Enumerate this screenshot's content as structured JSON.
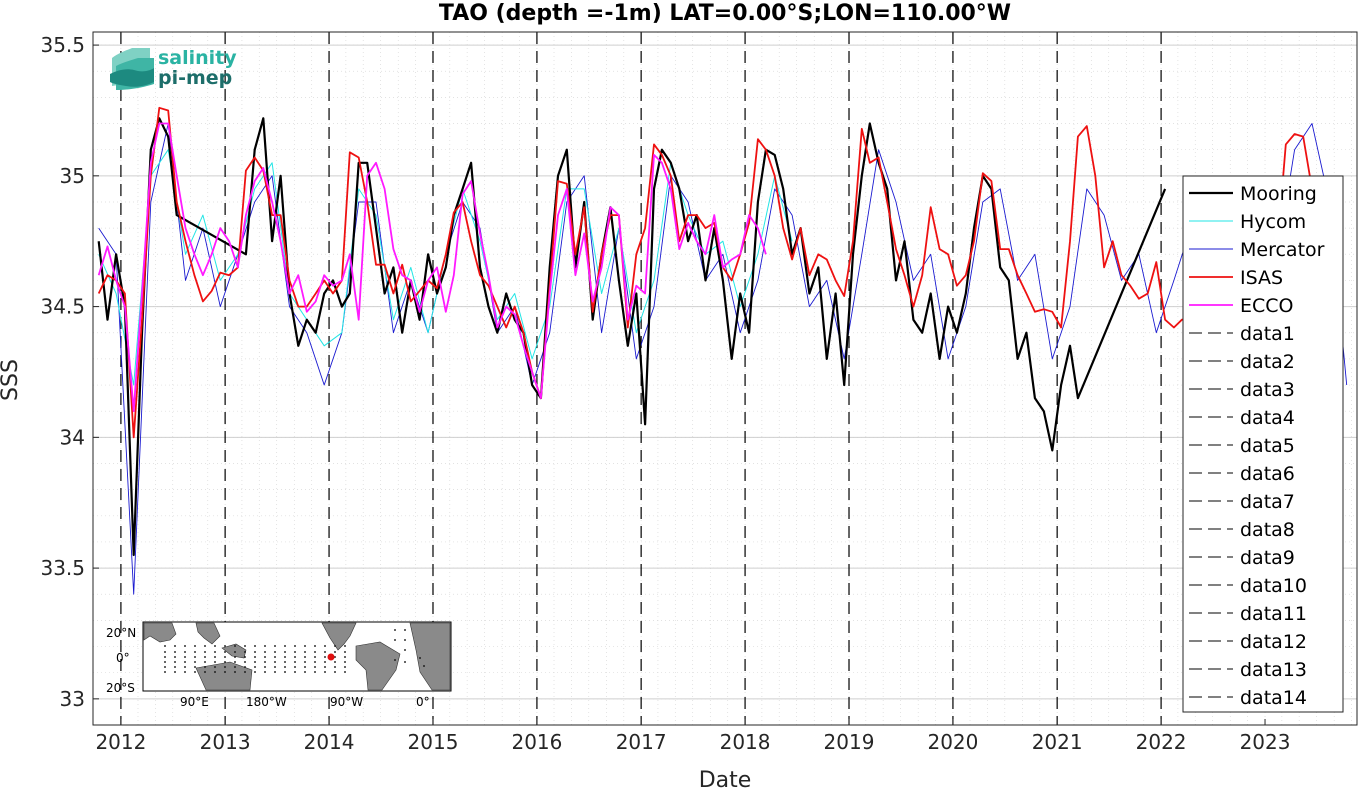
{
  "logo": {
    "line1": "salinity",
    "line2": "pi-mep"
  },
  "inset_map": {
    "lat_labels": [
      "20°N",
      "0°",
      "20°S"
    ],
    "lon_labels": [
      "90°E",
      "180°W",
      "90°W",
      "0°"
    ]
  },
  "colors": {
    "Mooring": "#000000",
    "Hycom": "#22e5e5",
    "Mercator": "#1a1ad0",
    "ISAS": "#ee1111",
    "ECCO": "#ff1aff",
    "yearline": "#000000",
    "grid": "#d9d9d9"
  },
  "chart_data": {
    "type": "line",
    "title": "TAO (depth =-1m) LAT=0.00°S;LON=110.00°W",
    "xlabel": "Date",
    "ylabel": "SSS",
    "xlim": [
      "2011-09-25",
      "2023-11-20"
    ],
    "ylim": [
      32.9,
      35.55
    ],
    "y_ticks": [
      "33",
      "33.5",
      "34",
      "34.5",
      "35",
      "35.5"
    ],
    "x_ticks": [
      "2012",
      "2013",
      "2014",
      "2015",
      "2016",
      "2017",
      "2018",
      "2019",
      "2020",
      "2021",
      "2022",
      "2023"
    ],
    "grid": true,
    "legend_position": "right",
    "legend": [
      "Mooring",
      "Hycom",
      "Mercator",
      "ISAS",
      "ECCO",
      "data1",
      "data2",
      "data3",
      "data4",
      "data5",
      "data6",
      "data7",
      "data8",
      "data9",
      "data10",
      "data11",
      "data12",
      "data13",
      "data14"
    ],
    "vertical_year_lines": [
      "2012-01-01",
      "2013-01-01",
      "2014-01-01",
      "2015-01-01",
      "2016-01-01",
      "2017-01-01",
      "2018-01-01",
      "2019-01-01",
      "2020-01-01",
      "2021-01-01",
      "2022-01-01"
    ],
    "series": [
      {
        "name": "ISAS",
        "x": [
          "2011-10",
          "2011-11",
          "2011-12",
          "2012-01",
          "2012-02",
          "2012-03",
          "2012-04",
          "2012-05",
          "2012-06",
          "2012-07",
          "2012-08",
          "2012-09",
          "2012-10",
          "2012-11",
          "2012-12",
          "2013-01",
          "2013-02",
          "2013-03",
          "2013-04",
          "2013-05",
          "2013-06",
          "2013-07",
          "2013-08",
          "2013-09",
          "2013-10",
          "2013-11",
          "2013-12",
          "2014-01",
          "2014-02",
          "2014-03",
          "2014-04",
          "2014-05",
          "2014-06",
          "2014-07",
          "2014-08",
          "2014-09",
          "2014-10",
          "2014-11",
          "2014-12",
          "2015-01",
          "2015-02",
          "2015-03",
          "2015-04",
          "2015-05",
          "2015-06",
          "2015-07",
          "2015-08",
          "2015-09",
          "2015-10",
          "2015-11",
          "2015-12",
          "2016-01",
          "2016-02",
          "2016-03",
          "2016-04",
          "2016-05",
          "2016-06",
          "2016-07",
          "2016-08",
          "2016-09",
          "2016-10",
          "2016-11",
          "2016-12",
          "2017-01",
          "2017-02",
          "2017-03",
          "2017-04",
          "2017-05",
          "2017-06",
          "2017-07",
          "2017-08",
          "2017-09",
          "2017-10",
          "2017-11",
          "2017-12",
          "2018-01",
          "2018-02",
          "2018-03",
          "2018-04",
          "2018-05",
          "2018-06",
          "2018-07",
          "2018-08",
          "2018-09",
          "2018-10",
          "2018-11",
          "2018-12",
          "2019-01",
          "2019-02",
          "2019-03",
          "2019-04",
          "2019-05",
          "2019-06",
          "2019-07",
          "2019-08",
          "2019-09",
          "2019-10",
          "2019-11",
          "2019-12",
          "2020-01",
          "2020-02",
          "2020-03",
          "2020-04",
          "2020-05",
          "2020-06",
          "2020-07",
          "2020-08",
          "2020-09",
          "2020-10",
          "2020-11",
          "2020-12",
          "2021-01",
          "2021-02",
          "2021-03",
          "2021-04",
          "2021-05",
          "2021-06",
          "2021-07",
          "2021-08",
          "2021-09",
          "2021-10",
          "2021-11",
          "2021-12",
          "2022-01",
          "2022-02",
          "2022-03",
          "2023-01",
          "2023-02",
          "2023-03",
          "2023-04",
          "2023-05",
          "2023-06",
          "2023-07",
          "2023-08",
          "2023-09"
        ],
        "y": [
          34.55,
          34.62,
          34.6,
          34.55,
          34.0,
          34.45,
          35.0,
          35.26,
          35.25,
          34.9,
          34.75,
          34.62,
          34.52,
          34.56,
          34.63,
          34.62,
          34.65,
          35.02,
          35.07,
          35.02,
          34.85,
          34.85,
          34.6,
          34.5,
          34.5,
          34.55,
          34.6,
          34.55,
          34.6,
          35.09,
          35.07,
          34.9,
          34.66,
          34.66,
          34.55,
          34.66,
          34.52,
          34.56,
          34.6,
          34.57,
          34.7,
          34.86,
          34.9,
          34.75,
          34.62,
          34.58,
          34.5,
          34.42,
          34.5,
          34.4,
          34.25,
          34.15,
          34.58,
          34.98,
          34.97,
          34.7,
          34.88,
          34.48,
          34.7,
          34.85,
          34.85,
          34.42,
          34.7,
          34.8,
          35.12,
          35.08,
          35.0,
          34.75,
          34.85,
          34.85,
          34.8,
          34.82,
          34.65,
          34.6,
          34.7,
          34.82,
          35.14,
          35.1,
          35.0,
          34.8,
          34.68,
          34.8,
          34.62,
          34.7,
          34.68,
          34.6,
          34.54,
          34.75,
          35.18,
          35.05,
          35.07,
          34.9,
          34.72,
          34.62,
          34.5,
          34.62,
          34.88,
          34.72,
          34.7,
          34.58,
          34.62,
          34.75,
          35.01,
          34.98,
          34.72,
          34.72,
          34.62,
          34.55,
          34.48,
          34.49,
          34.48,
          34.42,
          34.75,
          35.15,
          35.19,
          35.0,
          34.65,
          34.75,
          34.62,
          34.58,
          34.53,
          34.55,
          34.67,
          34.45,
          34.42,
          34.45,
          34.5,
          34.75,
          35.12,
          35.16,
          35.15,
          34.95,
          34.8,
          34.88,
          34.95
        ]
      },
      {
        "name": "ECCO",
        "x": [
          "2011-10",
          "2011-11",
          "2011-12",
          "2012-01",
          "2012-02",
          "2012-03",
          "2012-04",
          "2012-05",
          "2012-06",
          "2012-07",
          "2012-08",
          "2012-09",
          "2012-10",
          "2012-11",
          "2012-12",
          "2013-01",
          "2013-02",
          "2013-03",
          "2013-04",
          "2013-05",
          "2013-06",
          "2013-07",
          "2013-08",
          "2013-09",
          "2013-10",
          "2013-11",
          "2013-12",
          "2014-01",
          "2014-02",
          "2014-03",
          "2014-04",
          "2014-05",
          "2014-06",
          "2014-07",
          "2014-08",
          "2014-09",
          "2014-10",
          "2014-11",
          "2014-12",
          "2015-01",
          "2015-02",
          "2015-03",
          "2015-04",
          "2015-05",
          "2015-06",
          "2015-07",
          "2015-08",
          "2015-09",
          "2015-10",
          "2015-11",
          "2015-12",
          "2016-01",
          "2016-02",
          "2016-03",
          "2016-04",
          "2016-05",
          "2016-06",
          "2016-07",
          "2016-08",
          "2016-09",
          "2016-10",
          "2016-11",
          "2016-12",
          "2017-01",
          "2017-02",
          "2017-03",
          "2017-04",
          "2017-05",
          "2017-06",
          "2017-07",
          "2017-08",
          "2017-09",
          "2017-10",
          "2017-11",
          "2017-12",
          "2018-01",
          "2018-02",
          "2018-03"
        ],
        "y": [
          34.62,
          34.73,
          34.6,
          34.5,
          34.1,
          34.55,
          35.05,
          35.2,
          35.2,
          35.0,
          34.8,
          34.7,
          34.62,
          34.7,
          34.8,
          34.75,
          34.65,
          34.85,
          34.98,
          35.03,
          34.9,
          34.75,
          34.55,
          34.62,
          34.48,
          34.52,
          34.62,
          34.58,
          34.6,
          34.7,
          34.45,
          35.0,
          35.05,
          34.95,
          34.72,
          34.62,
          34.6,
          34.48,
          34.6,
          34.65,
          34.48,
          34.62,
          34.93,
          34.98,
          34.78,
          34.62,
          34.42,
          34.5,
          34.47,
          34.35,
          34.25,
          34.15,
          34.55,
          34.85,
          34.95,
          34.62,
          34.78,
          34.52,
          34.65,
          34.88,
          34.85,
          34.45,
          34.58,
          34.55,
          35.08,
          35.05,
          34.95,
          34.72,
          34.82,
          34.75,
          34.7,
          34.85,
          34.65,
          34.68,
          34.7,
          34.85,
          34.8,
          34.7
        ]
      },
      {
        "name": "Mooring",
        "x": [
          "2011-10",
          "2011-11",
          "2011-12",
          "2012-01",
          "2012-02",
          "2012-03",
          "2012-04",
          "2012-05",
          "2012-06",
          "2012-07",
          "2013-03",
          "2013-04",
          "2013-05",
          "2013-06",
          "2013-07",
          "2013-08",
          "2013-09",
          "2013-10",
          "2013-11",
          "2013-12",
          "2014-01",
          "2014-02",
          "2014-03",
          "2014-04",
          "2014-05",
          "2014-06",
          "2014-07",
          "2014-08",
          "2014-09",
          "2014-10",
          "2014-11",
          "2014-12",
          "2015-01",
          "2015-02",
          "2015-03",
          "2015-04",
          "2015-05",
          "2015-06",
          "2015-07",
          "2015-08",
          "2015-09",
          "2015-10",
          "2015-11",
          "2015-12",
          "2016-01",
          "2016-02",
          "2016-03",
          "2016-04",
          "2016-05",
          "2016-06",
          "2016-07",
          "2016-08",
          "2016-09",
          "2016-10",
          "2016-11",
          "2016-12",
          "2017-01",
          "2017-02",
          "2017-03",
          "2017-04",
          "2017-05",
          "2017-06",
          "2017-07",
          "2017-08",
          "2017-09",
          "2017-10",
          "2017-11",
          "2017-12",
          "2018-01",
          "2018-02",
          "2018-03",
          "2018-04",
          "2018-05",
          "2018-06",
          "2018-07",
          "2018-08",
          "2018-09",
          "2018-10",
          "2018-11",
          "2018-12",
          "2019-01",
          "2019-02",
          "2019-03",
          "2019-04",
          "2019-05",
          "2019-06",
          "2019-07",
          "2019-08",
          "2019-09",
          "2019-10",
          "2019-11",
          "2019-12",
          "2020-01",
          "2020-02",
          "2020-03",
          "2020-04",
          "2020-05",
          "2020-06",
          "2020-07",
          "2020-08",
          "2020-09",
          "2020-10",
          "2020-11",
          "2020-12",
          "2021-01",
          "2021-02",
          "2021-03",
          "2022-01"
        ],
        "y": [
          34.75,
          34.45,
          34.7,
          34.5,
          33.55,
          34.4,
          35.1,
          35.22,
          35.15,
          34.85,
          34.7,
          35.1,
          35.22,
          34.75,
          35.0,
          34.55,
          34.35,
          34.45,
          34.4,
          34.55,
          34.6,
          34.5,
          34.55,
          35.05,
          35.05,
          34.8,
          34.55,
          34.65,
          34.4,
          34.6,
          34.45,
          34.7,
          34.55,
          34.65,
          34.85,
          34.95,
          35.05,
          34.65,
          34.5,
          34.4,
          34.55,
          34.45,
          34.4,
          34.2,
          34.15,
          34.65,
          35.0,
          35.1,
          34.65,
          34.9,
          34.45,
          34.7,
          34.88,
          34.6,
          34.35,
          34.55,
          34.05,
          34.95,
          35.1,
          35.05,
          34.95,
          34.75,
          34.85,
          34.6,
          34.8,
          34.6,
          34.3,
          34.55,
          34.4,
          34.9,
          35.1,
          35.08,
          34.95,
          34.7,
          34.8,
          34.55,
          34.65,
          34.3,
          34.55,
          34.2,
          34.7,
          35.0,
          35.2,
          35.05,
          34.95,
          34.6,
          34.75,
          34.45,
          34.4,
          34.55,
          34.3,
          34.5,
          34.4,
          34.55,
          34.8,
          35.0,
          34.95,
          34.65,
          34.6,
          34.3,
          34.4,
          34.15,
          34.1,
          33.95,
          34.2,
          34.35,
          34.15,
          34.95
        ]
      },
      {
        "name": "Hycom",
        "x": [
          "2011-10",
          "2011-12",
          "2012-02",
          "2012-04",
          "2012-06",
          "2012-08",
          "2012-10",
          "2012-12",
          "2013-02",
          "2013-04",
          "2013-06",
          "2013-08",
          "2013-10",
          "2013-12",
          "2014-02",
          "2014-04",
          "2014-06",
          "2014-08",
          "2014-10",
          "2014-12",
          "2015-02",
          "2015-04",
          "2015-06",
          "2015-08",
          "2015-10",
          "2015-12",
          "2016-02",
          "2016-04",
          "2016-06",
          "2016-08",
          "2016-10",
          "2016-12",
          "2017-02",
          "2017-04",
          "2017-06",
          "2017-08",
          "2017-10",
          "2017-12",
          "2018-02",
          "2018-04",
          "2018-06"
        ],
        "y": [
          34.7,
          34.55,
          34.2,
          35.0,
          35.1,
          34.7,
          34.85,
          34.6,
          34.7,
          34.95,
          35.05,
          34.55,
          34.45,
          34.35,
          34.4,
          34.95,
          34.85,
          34.45,
          34.65,
          34.4,
          34.7,
          34.95,
          34.75,
          34.45,
          34.55,
          34.3,
          34.5,
          34.95,
          34.95,
          34.55,
          34.8,
          34.4,
          34.6,
          35.05,
          34.85,
          34.7,
          34.75,
          34.5,
          34.7,
          35.0,
          34.75
        ]
      },
      {
        "name": "Mercator",
        "x": [
          "2011-10",
          "2011-12",
          "2012-02",
          "2012-04",
          "2012-06",
          "2012-08",
          "2012-10",
          "2012-12",
          "2013-02",
          "2013-04",
          "2013-06",
          "2013-08",
          "2013-10",
          "2013-12",
          "2014-02",
          "2014-04",
          "2014-06",
          "2014-08",
          "2014-10",
          "2014-12",
          "2015-02",
          "2015-04",
          "2015-06",
          "2015-08",
          "2015-10",
          "2015-12",
          "2016-02",
          "2016-04",
          "2016-06",
          "2016-08",
          "2016-10",
          "2016-12",
          "2017-02",
          "2017-04",
          "2017-06",
          "2017-08",
          "2017-10",
          "2017-12",
          "2018-02",
          "2018-04",
          "2018-06",
          "2018-08",
          "2018-10",
          "2018-12",
          "2019-02",
          "2019-04",
          "2019-06",
          "2019-08",
          "2019-10",
          "2019-12",
          "2020-02",
          "2020-04",
          "2020-06",
          "2020-08",
          "2020-10",
          "2020-12",
          "2021-02",
          "2021-04",
          "2021-06",
          "2021-08",
          "2021-10",
          "2021-12",
          "2022-02",
          "2022-04",
          "2022-06",
          "2022-08",
          "2022-10",
          "2022-12",
          "2023-02",
          "2023-04",
          "2023-06",
          "2023-08",
          "2023-10"
        ],
        "y": [
          34.8,
          34.7,
          33.4,
          34.9,
          35.2,
          34.6,
          34.8,
          34.5,
          34.7,
          34.9,
          35.0,
          34.5,
          34.4,
          34.2,
          34.4,
          34.9,
          34.9,
          34.4,
          34.6,
          34.4,
          34.7,
          34.9,
          34.8,
          34.4,
          34.5,
          34.2,
          34.4,
          34.9,
          35.0,
          34.4,
          34.8,
          34.3,
          34.5,
          35.0,
          34.9,
          34.6,
          34.7,
          34.4,
          34.6,
          34.95,
          34.85,
          34.5,
          34.6,
          34.3,
          34.7,
          35.1,
          34.9,
          34.6,
          34.7,
          34.3,
          34.5,
          34.9,
          34.95,
          34.6,
          34.7,
          34.3,
          34.5,
          34.95,
          34.85,
          34.6,
          34.7,
          34.4,
          34.6,
          34.8,
          34.7,
          34.5,
          34.8,
          34.6,
          34.7,
          35.1,
          35.2,
          34.9,
          34.2
        ]
      }
    ]
  }
}
